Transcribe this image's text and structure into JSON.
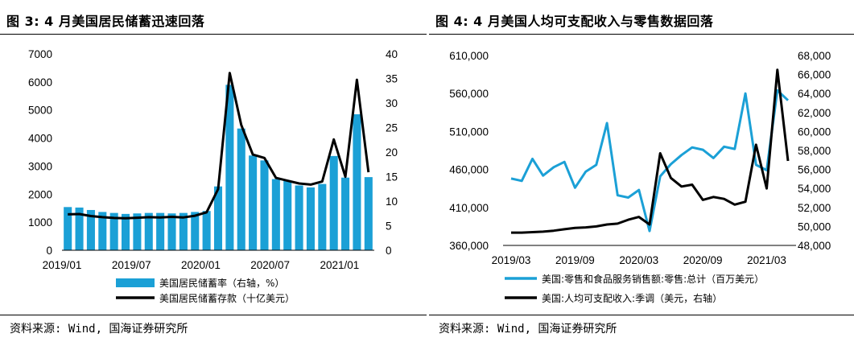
{
  "left": {
    "title": "图 3: 4 月美国居民储蓄迅速回落",
    "source": "资料来源: Wind, 国海证券研究所"
  },
  "right": {
    "title": "图 4: 4 月美国人均可支配收入与零售数据回落",
    "source": "资料来源: Wind, 国海证券研究所"
  },
  "chart_data": [
    {
      "type": "bar+line",
      "title": "图 3: 4 月美国居民储蓄迅速回落",
      "x_labels": [
        "2019/01",
        "2019/07",
        "2020/01",
        "2020/07",
        "2021/01"
      ],
      "x_label_index": [
        0,
        6,
        12,
        18,
        24
      ],
      "y_left": {
        "min": 0,
        "max": 7000,
        "ticks": [
          "0",
          "1000",
          "2000",
          "3000",
          "4000",
          "5000",
          "6000",
          "7000"
        ]
      },
      "y_right": {
        "min": 0,
        "max": 40,
        "ticks": [
          "0",
          "5",
          "10",
          "15",
          "20",
          "25",
          "30",
          "35",
          "40"
        ]
      },
      "series": [
        {
          "name": "美国居民储蓄率（右轴，%）",
          "type": "bar",
          "axis": "right",
          "color": "#1ba0d6",
          "values": [
            8.8,
            8.7,
            8.2,
            7.8,
            7.6,
            7.4,
            7.5,
            7.6,
            7.6,
            7.5,
            7.6,
            7.8,
            8.0,
            13.0,
            33.7,
            24.8,
            19.3,
            18.3,
            14.5,
            14.1,
            13.2,
            12.8,
            13.5,
            19.2,
            14.8,
            27.7,
            14.9
          ]
        },
        {
          "name": "美国居民储蓄存款（十亿美元）",
          "type": "line",
          "axis": "left",
          "color": "#000000",
          "values": [
            1280,
            1290,
            1220,
            1180,
            1150,
            1140,
            1160,
            1180,
            1170,
            1190,
            1170,
            1230,
            1350,
            2180,
            6320,
            4470,
            3410,
            3290,
            2580,
            2480,
            2380,
            2340,
            2450,
            3950,
            2620,
            6080,
            2780
          ]
        }
      ]
    },
    {
      "type": "line",
      "title": "图 4: 4 月美国人均可支配收入与零售数据回落",
      "x_labels": [
        "2019/03",
        "2019/09",
        "2020/03",
        "2020/09",
        "2021/03"
      ],
      "x_label_index": [
        0,
        6,
        12,
        18,
        24
      ],
      "y_left": {
        "min": 360000,
        "max": 610000,
        "ticks": [
          "360,000",
          "410,000",
          "460,000",
          "510,000",
          "560,000",
          "610,000"
        ]
      },
      "y_right": {
        "min": 48000,
        "max": 68000,
        "ticks": [
          "48,000",
          "50,000",
          "52,000",
          "54,000",
          "56,000",
          "58,000",
          "60,000",
          "62,000",
          "64,000",
          "66,000",
          "68,000"
        ]
      },
      "series": [
        {
          "name": "美国:零售和食品服务销售额:零售:总计（百万美元）",
          "axis": "left",
          "color": "#1ba0d6",
          "values": [
            448000,
            445000,
            474000,
            452000,
            463000,
            470000,
            436000,
            457000,
            466000,
            521000,
            426000,
            423000,
            433000,
            379000,
            451000,
            467000,
            479000,
            489000,
            486000,
            475000,
            490000,
            487000,
            560000,
            466000,
            459000,
            564000,
            551000
          ]
        },
        {
          "name": "美国:人均可支配收入:季调（美元，右轴）",
          "axis": "right",
          "color": "#000000",
          "values": [
            49350,
            49350,
            49400,
            49450,
            49550,
            49700,
            49850,
            49900,
            50000,
            50200,
            50300,
            50700,
            51000,
            50200,
            57700,
            55100,
            54200,
            54400,
            52800,
            53100,
            52900,
            52300,
            52600,
            58600,
            54000,
            66500,
            56900
          ]
        }
      ]
    }
  ]
}
